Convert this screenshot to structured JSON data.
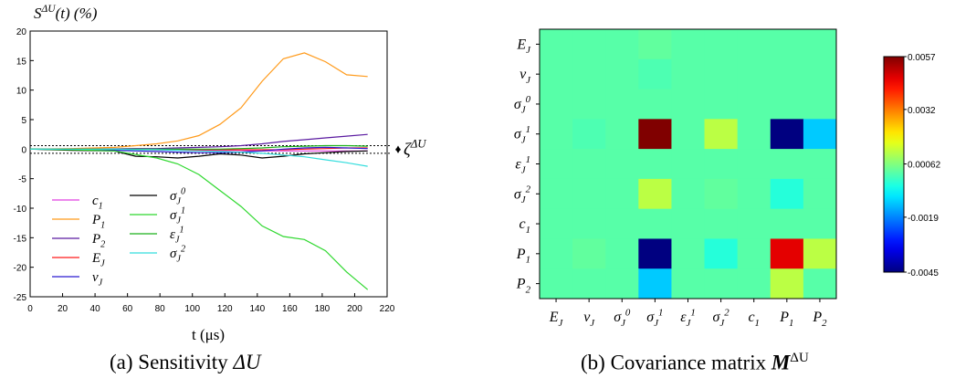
{
  "captions": {
    "a_prefix": "(a) Sensitivity ",
    "a_symbol": "ΔU",
    "b_prefix": "(b) Covariance matrix ",
    "b_symbol": "M",
    "b_superscript": "ΔU"
  },
  "chart_data": [
    {
      "type": "line",
      "title": "",
      "ylabel": "S^{ΔU}(t) (%)",
      "xlabel": "t (μs)",
      "xlim": [
        0,
        220
      ],
      "ylim": [
        -25,
        20
      ],
      "xticks": [
        0,
        20,
        40,
        60,
        80,
        100,
        120,
        140,
        160,
        180,
        200,
        220
      ],
      "yticks": [
        -25,
        -20,
        -15,
        -10,
        -5,
        0,
        5,
        10,
        15,
        20
      ],
      "grid": false,
      "legend_position": "bottom-left",
      "band": {
        "label": "ζ^{ΔU}",
        "y_range": [
          -0.7,
          0.6
        ]
      },
      "series": [
        {
          "name": "c_1",
          "color": "#e040e0",
          "x": [
            0,
            26,
            52,
            65,
            78,
            91,
            104,
            117,
            130,
            143,
            156,
            169,
            182,
            195,
            208
          ],
          "y": [
            0,
            0,
            -0.05,
            -0.1,
            -0.1,
            -0.15,
            -0.2,
            -0.2,
            -0.25,
            -0.3,
            -0.3,
            -0.3,
            -0.3,
            -0.3,
            -0.3
          ]
        },
        {
          "name": "P_1",
          "color": "#ff9a1a",
          "x": [
            0,
            26,
            52,
            65,
            78,
            91,
            104,
            117,
            130,
            143,
            156,
            169,
            182,
            195,
            208
          ],
          "y": [
            0,
            0.1,
            0.3,
            0.6,
            0.9,
            1.4,
            2.3,
            4.2,
            7.0,
            11.5,
            15.3,
            16.3,
            14.8,
            12.6,
            12.3
          ]
        },
        {
          "name": "P_2",
          "color": "#5a1aa0",
          "x": [
            0,
            26,
            52,
            65,
            78,
            91,
            104,
            117,
            130,
            143,
            156,
            169,
            182,
            195,
            208
          ],
          "y": [
            0,
            0,
            0.05,
            0.1,
            0.1,
            0.2,
            0.3,
            0.4,
            0.6,
            0.9,
            1.3,
            1.6,
            1.9,
            2.2,
            2.5
          ]
        },
        {
          "name": "E_J",
          "color": "#ff1a1a",
          "x": [
            0,
            26,
            52,
            65,
            78,
            91,
            104,
            117,
            130,
            143,
            156,
            169,
            182,
            195,
            208
          ],
          "y": [
            0,
            0,
            0,
            -0.05,
            -0.1,
            -0.1,
            -0.1,
            -0.1,
            -0.1,
            -0.1,
            -0.1,
            0,
            0.1,
            0.2,
            0.2
          ]
        },
        {
          "name": "v_J",
          "color": "#2a1ad0",
          "x": [
            0,
            26,
            52,
            65,
            78,
            91,
            104,
            117,
            130,
            143,
            156,
            169,
            182,
            195,
            208
          ],
          "y": [
            0,
            -0.1,
            -0.2,
            -0.3,
            -0.4,
            -0.5,
            -0.6,
            -0.6,
            -0.5,
            -0.3,
            0,
            0.2,
            0.3,
            0.2,
            0.1
          ]
        },
        {
          "name": "σ_J^0",
          "color": "#000000",
          "x": [
            0,
            26,
            52,
            65,
            78,
            91,
            104,
            117,
            130,
            143,
            156,
            169,
            182,
            195,
            208
          ],
          "y": [
            0,
            -0.2,
            -0.3,
            -1.2,
            -1.3,
            -1.5,
            -1.2,
            -0.8,
            -1.0,
            -1.5,
            -1.2,
            -0.8,
            -0.6,
            -0.4,
            -0.3
          ]
        },
        {
          "name": "σ_J^1",
          "color": "#2ed82e",
          "x": [
            0,
            26,
            52,
            65,
            78,
            91,
            104,
            117,
            130,
            143,
            156,
            169,
            182,
            195,
            208
          ],
          "y": [
            0,
            -0.1,
            -0.3,
            -0.9,
            -1.5,
            -2.5,
            -4.3,
            -7.0,
            -9.7,
            -13.0,
            -14.8,
            -15.3,
            -17.2,
            -20.8,
            -23.8
          ]
        },
        {
          "name": "ε_J^1",
          "color": "#1ab01a",
          "x": [
            0,
            26,
            52,
            65,
            78,
            91,
            104,
            117,
            130,
            143,
            156,
            169,
            182,
            195,
            208
          ],
          "y": [
            0,
            0,
            0,
            0,
            0,
            0,
            0,
            0,
            0.1,
            0.2,
            0.4,
            0.5,
            0.6,
            0.6,
            0.5
          ]
        },
        {
          "name": "σ_J^2",
          "color": "#33dddd",
          "x": [
            0,
            26,
            52,
            65,
            78,
            91,
            104,
            117,
            130,
            143,
            156,
            169,
            182,
            195,
            208
          ],
          "y": [
            0,
            0,
            0,
            -0.1,
            -0.1,
            -0.2,
            -0.3,
            -0.4,
            -0.5,
            -0.7,
            -1.0,
            -1.3,
            -1.8,
            -2.3,
            -2.9
          ]
        }
      ]
    },
    {
      "type": "heatmap",
      "title": "",
      "x_labels": [
        "E_J",
        "v_J",
        "σ_J^0",
        "σ_J^1",
        "ε_J^1",
        "σ_J^2",
        "c_1",
        "P_1",
        "P_2"
      ],
      "y_labels": [
        "E_J",
        "v_J",
        "σ_J^0",
        "σ_J^1",
        "ε_J^1",
        "σ_J^2",
        "c_1",
        "P_1",
        "P_2"
      ],
      "colorbar": {
        "min": -0.0045,
        "max": 0.0057,
        "ticks": [
          "0.0057",
          "0.0032",
          "0.00062",
          "-0.0019",
          "-0.0045"
        ],
        "colormap": "jet"
      },
      "values": [
        [
          0.0002,
          0.0002,
          0.0002,
          0.0003,
          0.0002,
          0.0002,
          0.0002,
          0.0002,
          0.0002
        ],
        [
          0.0002,
          0.0002,
          0.0002,
          0.0001,
          0.0002,
          0.0002,
          0.0002,
          0.0002,
          0.0002
        ],
        [
          0.0002,
          0.0002,
          0.0002,
          0.0002,
          0.0002,
          0.0002,
          0.0002,
          0.0002,
          0.0002
        ],
        [
          0.0002,
          0.0001,
          0.0002,
          0.0057,
          0.0002,
          0.0012,
          0.0002,
          -0.0045,
          -0.0012
        ],
        [
          0.0002,
          0.0002,
          0.0002,
          0.0002,
          0.0002,
          0.0002,
          0.0002,
          0.0002,
          0.0002
        ],
        [
          0.0002,
          0.0002,
          0.0002,
          0.0012,
          0.0002,
          0.0003,
          0.0002,
          -0.0003,
          0.0002
        ],
        [
          0.0002,
          0.0002,
          0.0002,
          0.0002,
          0.0002,
          0.0002,
          0.0002,
          0.0002,
          0.0002
        ],
        [
          0.0002,
          0.0003,
          0.0002,
          -0.0045,
          0.0002,
          -0.0003,
          0.0002,
          0.0047,
          0.0012
        ],
        [
          0.0002,
          0.0002,
          0.0002,
          -0.0012,
          0.0002,
          0.0002,
          0.0002,
          0.0012,
          0.0002
        ]
      ]
    }
  ]
}
